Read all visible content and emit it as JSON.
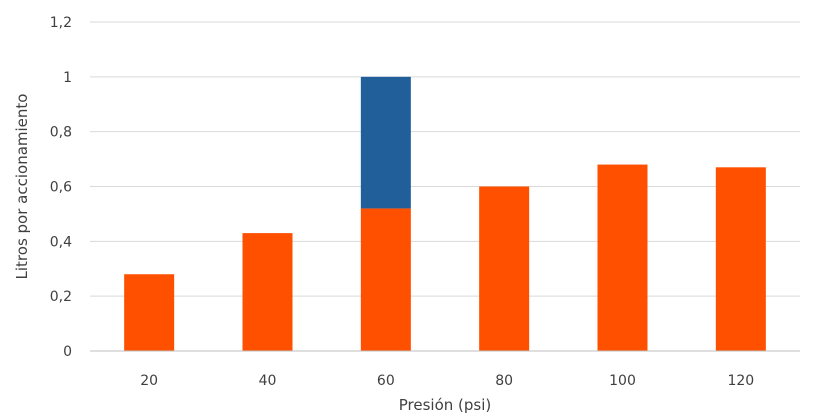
{
  "chart_data": {
    "type": "bar",
    "stacked": true,
    "title": "",
    "xlabel": "Presión (psi)",
    "ylabel": "Litros por accionamiento",
    "categories": [
      "20",
      "40",
      "60",
      "80",
      "100",
      "120"
    ],
    "series": [
      {
        "color": "#ff5000",
        "values": [
          0.28,
          0.43,
          0.52,
          0.6,
          0.68,
          0.67
        ]
      },
      {
        "color": "#215f9a",
        "values": [
          0,
          0,
          0.48,
          0,
          0,
          0
        ]
      }
    ],
    "ylim": [
      0,
      1.2
    ],
    "yticks": [
      0,
      0.2,
      0.4,
      0.6,
      0.8,
      1,
      1.2
    ],
    "ytick_labels": [
      "0",
      "0,2",
      "0,4",
      "0,6",
      "0,8",
      "1",
      "1,2"
    ],
    "grid": true,
    "legend": "none"
  }
}
